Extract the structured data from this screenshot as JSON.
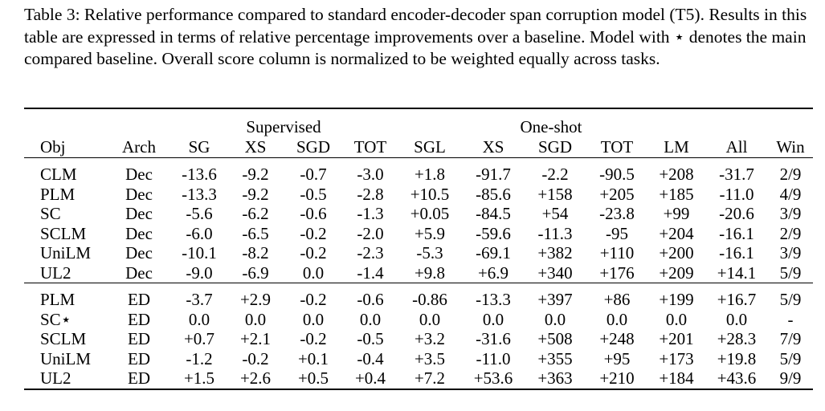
{
  "caption": {
    "label": "Table 3:",
    "text": "Relative performance compared to standard encoder-decoder span corruption model (T5). Results in this table are expressed in terms of relative percentage improvements over a baseline. Model with ⋆ denotes the main compared baseline. Overall score column is normalized to be weighted equally across tasks."
  },
  "table": {
    "groups": {
      "supervised": "Supervised",
      "oneshot": "One-shot"
    },
    "headers": [
      "Obj",
      "Arch",
      "SG",
      "XS",
      "SGD",
      "TOT",
      "SGL",
      "XS",
      "SGD",
      "TOT",
      "LM",
      "All",
      "Win"
    ],
    "block1": [
      [
        "CLM",
        "Dec",
        "-13.6",
        "-9.2",
        "-0.7",
        "-3.0",
        "+1.8",
        "-91.7",
        "-2.2",
        "-90.5",
        "+208",
        "-31.7",
        "2/9"
      ],
      [
        "PLM",
        "Dec",
        "-13.3",
        "-9.2",
        "-0.5",
        "-2.8",
        "+10.5",
        "-85.6",
        "+158",
        "+205",
        "+185",
        "-11.0",
        "4/9"
      ],
      [
        "SC",
        "Dec",
        "-5.6",
        "-6.2",
        "-0.6",
        "-1.3",
        "+0.05",
        "-84.5",
        "+54",
        "-23.8",
        "+99",
        "-20.6",
        "3/9"
      ],
      [
        "SCLM",
        "Dec",
        "-6.0",
        "-6.5",
        "-0.2",
        "-2.0",
        "+5.9",
        "-59.6",
        "-11.3",
        "-95",
        "+204",
        "-16.1",
        "2/9"
      ],
      [
        "UniLM",
        "Dec",
        "-10.1",
        "-8.2",
        "-0.2",
        "-2.3",
        "-5.3",
        "-69.1",
        "+382",
        "+110",
        "+200",
        "-16.1",
        "3/9"
      ],
      [
        "UL2",
        "Dec",
        "-9.0",
        "-6.9",
        "0.0",
        "-1.4",
        "+9.8",
        "+6.9",
        "+340",
        "+176",
        "+209",
        "+14.1",
        "5/9"
      ]
    ],
    "block2": [
      [
        "PLM",
        "ED",
        "-3.7",
        "+2.9",
        "-0.2",
        "-0.6",
        "-0.86",
        "-13.3",
        "+397",
        "+86",
        "+199",
        "+16.7",
        "5/9"
      ],
      [
        "SC⋆",
        "ED",
        "0.0",
        "0.0",
        "0.0",
        "0.0",
        "0.0",
        "0.0",
        "0.0",
        "0.0",
        "0.0",
        "0.0",
        "-"
      ],
      [
        "SCLM",
        "ED",
        "+0.7",
        "+2.1",
        "-0.2",
        "-0.5",
        "+3.2",
        "-31.6",
        "+508",
        "+248",
        "+201",
        "+28.3",
        "7/9"
      ],
      [
        "UniLM",
        "ED",
        "-1.2",
        "-0.2",
        "+0.1",
        "-0.4",
        "+3.5",
        "-11.0",
        "+355",
        "+95",
        "+173",
        "+19.8",
        "5/9"
      ],
      [
        "UL2",
        "ED",
        "+1.5",
        "+2.6",
        "+0.5",
        "+0.4",
        "+7.2",
        "+53.6",
        "+363",
        "+210",
        "+184",
        "+43.6",
        "9/9"
      ]
    ]
  }
}
